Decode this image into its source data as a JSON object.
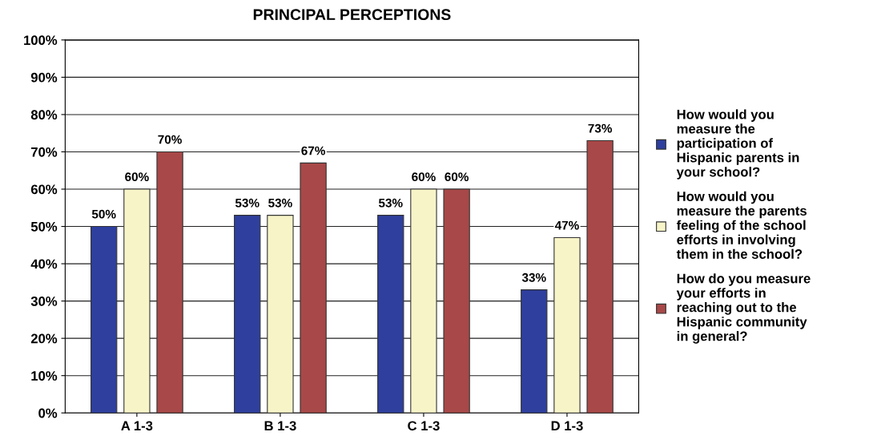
{
  "chart_data": {
    "type": "bar",
    "title": "PRINCIPAL PERCEPTIONS",
    "categories": [
      "A 1-3",
      "B 1-3",
      "C 1-3",
      "D 1-3"
    ],
    "series": [
      {
        "name": "How would you\nmeasure the\nparticipation of\nHispanic parents in\nyour school?",
        "color": "#2e3f9e",
        "values": [
          50,
          53,
          53,
          33
        ],
        "value_labels": [
          "50%",
          "53%",
          "53%",
          "33%"
        ]
      },
      {
        "name": "How would you\nmeasure the parents\nfeeling of the school\nefforts in involving\nthem in the school?",
        "color": "#f7f4c8",
        "values": [
          60,
          53,
          60,
          47
        ],
        "value_labels": [
          "60%",
          "53%",
          "60%",
          "47%"
        ]
      },
      {
        "name": "How do you measure\nyour efforts in\nreaching out to the\nHispanic community\nin general?",
        "color": "#a84848",
        "values": [
          70,
          67,
          60,
          73
        ],
        "value_labels": [
          "70%",
          "67%",
          "60%",
          "73%"
        ]
      }
    ],
    "ylim": [
      0,
      100
    ],
    "yticks": [
      {
        "value": 0,
        "label": "0%"
      },
      {
        "value": 10,
        "label": "10%"
      },
      {
        "value": 20,
        "label": "20%"
      },
      {
        "value": 30,
        "label": "30%"
      },
      {
        "value": 40,
        "label": "40%"
      },
      {
        "value": 50,
        "label": "50%"
      },
      {
        "value": 60,
        "label": "60%"
      },
      {
        "value": 70,
        "label": "70%"
      },
      {
        "value": 80,
        "label": "80%"
      },
      {
        "value": 90,
        "label": "90%"
      },
      {
        "value": 100,
        "label": "100%"
      }
    ],
    "grid": "y",
    "legend": "right"
  }
}
